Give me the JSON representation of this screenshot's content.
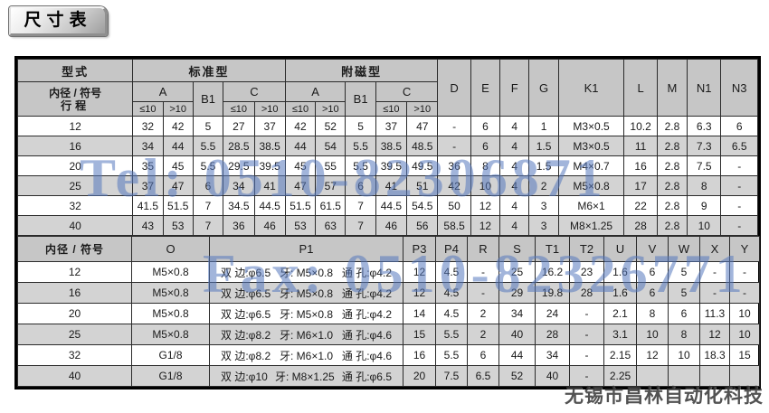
{
  "page_title": "尺寸表",
  "watermarks": {
    "tel": "Tel: 0510-82306871",
    "fax": "Fax: 0510-82326771",
    "company": "无锡市昌林自动化科技"
  },
  "colors": {
    "header_bg": "#c6c6c6",
    "stripe_row_bg": "#d3d3d3",
    "white_row_bg": "#ffffff",
    "grid_border": "#2b2b2b",
    "outer_border": "#000000",
    "watermark_blue": "#5678be",
    "company_text": "#343434"
  },
  "dimension_table": {
    "section1": {
      "header": {
        "type_label": "型式",
        "bore_label": "内径 / 符号",
        "stroke_label": "行程",
        "standard_label": "标准型",
        "magnetic_label": "附磁型",
        "col_a": "A",
        "col_b1": "B1",
        "col_c": "C",
        "le10": "≤10",
        "gt10": ">10",
        "right_columns": [
          "D",
          "E",
          "F",
          "G",
          "K1",
          "L",
          "M",
          "N1",
          "N3"
        ]
      },
      "rows": [
        {
          "bore": "12",
          "values": [
            "32",
            "42",
            "5",
            "27",
            "37",
            "42",
            "52",
            "5",
            "37",
            "47",
            "-",
            "6",
            "4",
            "1",
            "M3×0.5",
            "10.2",
            "2.8",
            "6.3",
            "6"
          ]
        },
        {
          "bore": "16",
          "values": [
            "34",
            "44",
            "5.5",
            "28.5",
            "38.5",
            "44",
            "54",
            "5.5",
            "38.5",
            "48.5",
            "-",
            "6",
            "4",
            "1.5",
            "M3×0.5",
            "11",
            "2.8",
            "7.3",
            "6.5"
          ]
        },
        {
          "bore": "20",
          "values": [
            "35",
            "45",
            "5.5",
            "29.5",
            "39.5",
            "45",
            "55",
            "5.5",
            "39.5",
            "49.5",
            "36",
            "8",
            "4",
            "1.5",
            "M4×0.7",
            "16",
            "2.8",
            "7.5",
            "-"
          ]
        },
        {
          "bore": "25",
          "values": [
            "37",
            "47",
            "6",
            "34",
            "41",
            "47",
            "57",
            "6",
            "41",
            "51",
            "42",
            "10",
            "4",
            "2",
            "M5×0.8",
            "17",
            "2.8",
            "8",
            "-"
          ]
        },
        {
          "bore": "32",
          "values": [
            "41.5",
            "51.5",
            "7",
            "34.5",
            "44.5",
            "51.5",
            "61.5",
            "7",
            "44.5",
            "54.5",
            "50",
            "12",
            "4",
            "3",
            "M6×1",
            "22",
            "2.8",
            "9",
            "-"
          ]
        },
        {
          "bore": "40",
          "values": [
            "43",
            "53",
            "7",
            "36",
            "46",
            "53",
            "63",
            "7",
            "46",
            "56",
            "58.5",
            "12",
            "4",
            "3",
            "M8×1.25",
            "28",
            "2.8",
            "10",
            "-"
          ]
        }
      ]
    },
    "section2": {
      "header": {
        "bore_label": "内径 / 符号",
        "columns": [
          "O",
          "P1",
          "P3",
          "P4",
          "R",
          "S",
          "T1",
          "T2",
          "U",
          "V",
          "W",
          "X",
          "Y"
        ]
      },
      "rows": [
        {
          "bore": "12",
          "o": "M5×0.8",
          "p1": [
            "双 边:φ6.5",
            "牙: M5×0.8",
            "通 孔:φ4.2"
          ],
          "values": [
            "12",
            "4.5",
            "-",
            "25",
            "16.2",
            "23",
            "1.6",
            "6",
            "5",
            "-",
            "-"
          ]
        },
        {
          "bore": "16",
          "o": "M5×0.8",
          "p1": [
            "双 边:φ6.5",
            "牙: M5×0.8",
            "通 孔:φ4.2"
          ],
          "values": [
            "12",
            "4.5",
            "-",
            "29",
            "19.8",
            "28",
            "1.6",
            "6",
            "5",
            "-",
            "-"
          ]
        },
        {
          "bore": "20",
          "o": "M5×0.8",
          "p1": [
            "双 边:φ6.5",
            "牙: M5×0.8",
            "通 孔:φ4.2"
          ],
          "values": [
            "14",
            "4.5",
            "2",
            "34",
            "24",
            "-",
            "2.1",
            "8",
            "6",
            "11.3",
            "10"
          ]
        },
        {
          "bore": "25",
          "o": "M5×0.8",
          "p1": [
            "双 边:φ8.2",
            "牙: M6×1.0",
            "通 孔:φ4.6"
          ],
          "values": [
            "15",
            "5.5",
            "2",
            "40",
            "28",
            "-",
            "3.1",
            "10",
            "8",
            "12",
            "10"
          ]
        },
        {
          "bore": "32",
          "o": "G1/8",
          "p1": [
            "双 边:φ8.2",
            "牙: M6×1.0",
            "通 孔:φ4.6"
          ],
          "values": [
            "16",
            "5.5",
            "6",
            "44",
            "34",
            "-",
            "2.15",
            "12",
            "10",
            "18.3",
            "15"
          ]
        },
        {
          "bore": "40",
          "o": "G1/8",
          "p1": [
            "双 边:φ10",
            "牙: M8×1.25",
            "通 孔:φ6.5"
          ],
          "values": [
            "20",
            "7.5",
            "6.5",
            "52",
            "40",
            "-",
            "2.25",
            "",
            "",
            "",
            ""
          ]
        }
      ]
    }
  }
}
